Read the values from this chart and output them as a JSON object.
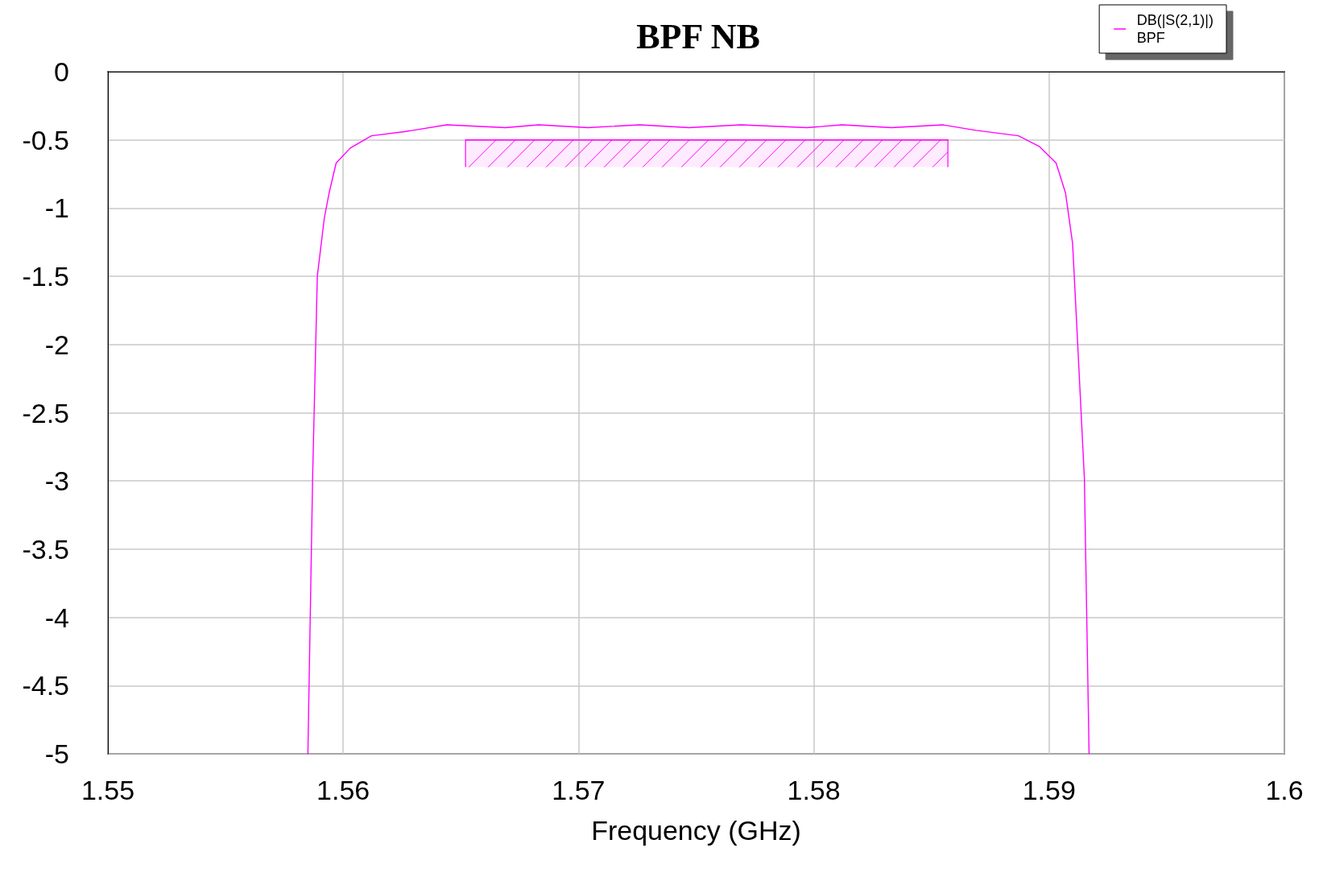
{
  "chart_data": {
    "type": "line",
    "title": "BPF NB",
    "xlabel": "Frequency (GHz)",
    "xlim": [
      1.55,
      1.6
    ],
    "xticks": [
      1.55,
      1.56,
      1.57,
      1.58,
      1.59,
      1.6
    ],
    "ylim": [
      -5,
      0
    ],
    "yticks": [
      -5,
      -4.5,
      -4,
      -3.5,
      -3,
      -2.5,
      -2,
      -1.5,
      -1,
      -0.5,
      0
    ],
    "grid": true,
    "legend": "top right",
    "marker": "none",
    "line_style": "solid",
    "series": [
      {
        "name": "DB(|S(2,1)|)\nBPF",
        "color": "#ff00ff",
        "x": [
          1.5585,
          1.5587,
          1.5589,
          1.5592,
          1.5594,
          1.5597,
          1.5603,
          1.5612,
          1.5626,
          1.5644,
          1.5669,
          1.5683,
          1.5704,
          1.5726,
          1.5747,
          1.5769,
          1.5797,
          1.5812,
          1.5833,
          1.5855,
          1.5869,
          1.5887,
          1.5896,
          1.5903,
          1.5907,
          1.591,
          1.5912,
          1.5915,
          1.5917
        ],
        "values": [
          -5,
          -2.98,
          -1.5,
          -1.07,
          -0.89,
          -0.67,
          -0.56,
          -0.47,
          -0.44,
          -0.39,
          -0.41,
          -0.39,
          -0.41,
          -0.39,
          -0.41,
          -0.39,
          -0.41,
          -0.39,
          -0.41,
          -0.39,
          -0.43,
          -0.47,
          -0.55,
          -0.67,
          -0.89,
          -1.26,
          -1.94,
          -2.98,
          -5
        ]
      },
      {
        "color": "#ff00ff",
        "x": [
          1.5652,
          1.5857
        ],
        "values": [
          -0.5,
          -0.5
        ],
        "lower": [
          -0.7,
          -0.7
        ],
        "upper": [
          -0.5,
          -0.5
        ]
      }
    ]
  }
}
